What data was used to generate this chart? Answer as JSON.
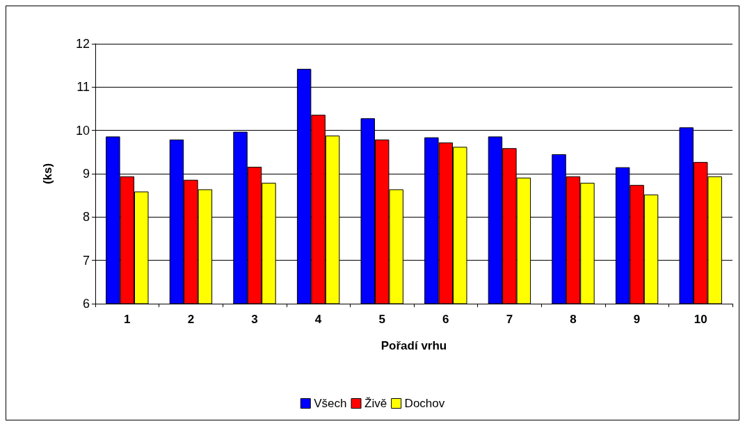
{
  "chart_data": {
    "type": "bar",
    "xlabel": "Pořadí vrhu",
    "ylabel": "(ks)",
    "categories": [
      "1",
      "2",
      "3",
      "4",
      "5",
      "6",
      "7",
      "8",
      "9",
      "10"
    ],
    "series": [
      {
        "name": "Všech",
        "color": "#0000ff",
        "values": [
          9.86,
          9.79,
          9.97,
          11.42,
          10.28,
          9.84,
          9.86,
          9.45,
          9.15,
          10.07
        ]
      },
      {
        "name": "Živě",
        "color": "#ff0000",
        "values": [
          8.94,
          8.86,
          9.16,
          10.36,
          9.79,
          9.72,
          9.59,
          8.94,
          8.74,
          9.27
        ]
      },
      {
        "name": "Dochov",
        "color": "#ffff00",
        "values": [
          8.59,
          8.64,
          8.79,
          9.88,
          8.64,
          9.62,
          8.91,
          8.79,
          8.52,
          8.94
        ]
      }
    ],
    "ylim": [
      6,
      12
    ],
    "yticks": [
      6,
      7,
      8,
      9,
      10,
      11,
      12
    ],
    "grid": "y",
    "legend": "bottom"
  }
}
